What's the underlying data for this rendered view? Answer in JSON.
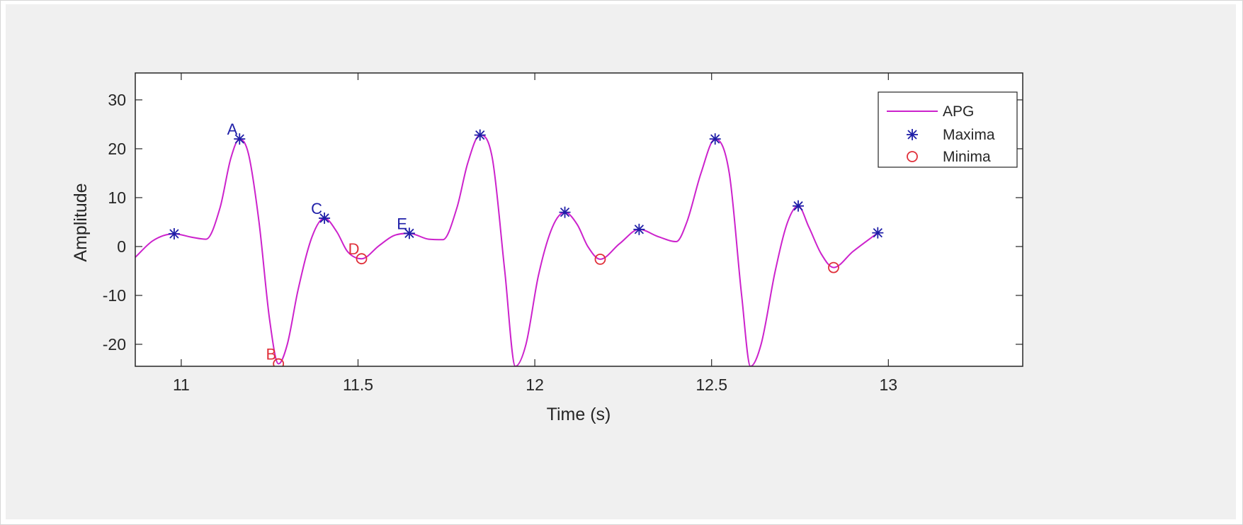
{
  "chart_data": {
    "type": "line",
    "title": "",
    "xlabel": "Time (s)",
    "ylabel": "Amplitude",
    "xlim": [
      10.87,
      13.38
    ],
    "ylim": [
      -24.5,
      35.5
    ],
    "xticks": [
      11,
      11.5,
      12,
      12.5,
      13
    ],
    "xtick_labels": [
      "11",
      "11.5",
      "12",
      "12.5",
      "13"
    ],
    "yticks": [
      -20,
      -10,
      0,
      10,
      20,
      30
    ],
    "ytick_labels": [
      "-20",
      "-10",
      "0",
      "10",
      "20",
      "30"
    ],
    "grid": false,
    "legend_position": "top-right",
    "colors": {
      "line": "#cc22cc",
      "maxima": "#1f1fa8",
      "minima": "#e0303a",
      "axes": "#262626",
      "figure_bg": "#f0f0f0"
    },
    "legend": [
      {
        "name": "APG",
        "marker": "line"
      },
      {
        "name": "Maxima",
        "marker": "asterisk"
      },
      {
        "name": "Minima",
        "marker": "circle"
      }
    ],
    "series": [
      {
        "name": "APG",
        "x": [
          10.87,
          10.92,
          10.98,
          11.03,
          11.07,
          11.11,
          11.14,
          11.165,
          11.19,
          11.22,
          11.25,
          11.275,
          11.3,
          11.33,
          11.37,
          11.405,
          11.44,
          11.47,
          11.51,
          11.56,
          11.6,
          11.645,
          11.7,
          11.74,
          11.78,
          11.81,
          11.845,
          11.88,
          11.915,
          11.945,
          11.975,
          12.01,
          12.05,
          12.085,
          12.12,
          12.15,
          12.185,
          12.24,
          12.295,
          12.35,
          12.4,
          12.43,
          12.47,
          12.51,
          12.55,
          12.585,
          12.61,
          12.64,
          12.68,
          12.715,
          12.745,
          12.775,
          12.81,
          12.845,
          12.9,
          12.97
        ],
        "y": [
          -2.2,
          1.2,
          2.6,
          1.9,
          1.5,
          8.0,
          18.0,
          22.0,
          19.0,
          5.0,
          -15.0,
          -24.0,
          -20.0,
          -9.0,
          2.0,
          5.8,
          3.0,
          -1.0,
          -2.5,
          0.2,
          2.2,
          2.7,
          1.5,
          1.4,
          8.0,
          17.0,
          22.8,
          18.0,
          -5.0,
          -24.5,
          -20.0,
          -6.0,
          4.0,
          7.0,
          4.5,
          0.0,
          -2.6,
          0.6,
          3.5,
          2.0,
          1.0,
          5.0,
          15.0,
          22.0,
          15.0,
          -10.0,
          -24.5,
          -20.0,
          -5.0,
          5.0,
          8.3,
          4.0,
          -1.5,
          -4.3,
          -1.0,
          2.8
        ]
      },
      {
        "name": "Maxima",
        "x": [
          10.98,
          11.165,
          11.405,
          11.645,
          11.845,
          12.085,
          12.295,
          12.51,
          12.745,
          12.97
        ],
        "y": [
          2.6,
          22.0,
          5.8,
          2.7,
          22.8,
          7.0,
          3.5,
          22.0,
          8.3,
          2.8
        ]
      },
      {
        "name": "Minima",
        "x": [
          11.275,
          11.51,
          12.185,
          12.845
        ],
        "y": [
          -24.0,
          -2.5,
          -2.6,
          -4.3
        ]
      }
    ],
    "annotations": [
      {
        "text": "A",
        "x": 11.165,
        "y": 22.0,
        "kind": "max"
      },
      {
        "text": "B",
        "x": 11.275,
        "y": -24.0,
        "kind": "min"
      },
      {
        "text": "C",
        "x": 11.405,
        "y": 5.8,
        "kind": "max"
      },
      {
        "text": "D",
        "x": 11.51,
        "y": -2.5,
        "kind": "min"
      },
      {
        "text": "E",
        "x": 11.645,
        "y": 2.7,
        "kind": "max"
      }
    ]
  }
}
